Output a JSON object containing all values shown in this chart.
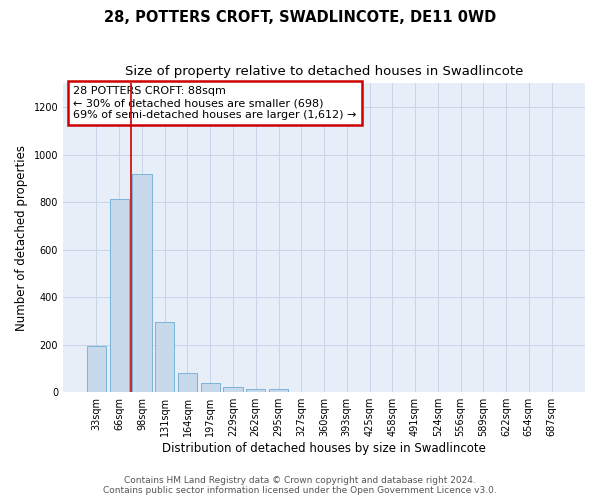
{
  "title": "28, POTTERS CROFT, SWADLINCOTE, DE11 0WD",
  "subtitle": "Size of property relative to detached houses in Swadlincote",
  "xlabel": "Distribution of detached houses by size in Swadlincote",
  "ylabel": "Number of detached properties",
  "categories": [
    "33sqm",
    "66sqm",
    "98sqm",
    "131sqm",
    "164sqm",
    "197sqm",
    "229sqm",
    "262sqm",
    "295sqm",
    "327sqm",
    "360sqm",
    "393sqm",
    "425sqm",
    "458sqm",
    "491sqm",
    "524sqm",
    "556sqm",
    "589sqm",
    "622sqm",
    "654sqm",
    "687sqm"
  ],
  "bar_values": [
    195,
    815,
    920,
    295,
    82,
    38,
    22,
    15,
    12,
    0,
    0,
    0,
    0,
    0,
    0,
    0,
    0,
    0,
    0,
    0,
    0
  ],
  "bar_color": "#c8d9ec",
  "bar_edge_color": "#6aaed6",
  "vline_x": 1.5,
  "annotation_text": "28 POTTERS CROFT: 88sqm\n← 30% of detached houses are smaller (698)\n69% of semi-detached houses are larger (1,612) →",
  "annotation_box_color": "#ffffff",
  "annotation_box_edge_color": "#cc0000",
  "vline_color": "#cc0000",
  "ylim": [
    0,
    1300
  ],
  "yticks": [
    0,
    200,
    400,
    600,
    800,
    1000,
    1200
  ],
  "grid_color": "#c8d4e8",
  "bg_color": "#e8eef8",
  "footer_line1": "Contains HM Land Registry data © Crown copyright and database right 2024.",
  "footer_line2": "Contains public sector information licensed under the Open Government Licence v3.0.",
  "title_fontsize": 10.5,
  "subtitle_fontsize": 9.5,
  "xlabel_fontsize": 8.5,
  "ylabel_fontsize": 8.5,
  "tick_fontsize": 7,
  "annot_fontsize": 8,
  "footer_fontsize": 6.5
}
